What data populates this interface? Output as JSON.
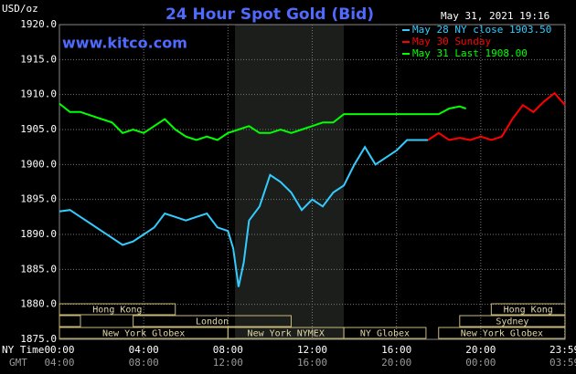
{
  "chart_data": {
    "type": "line",
    "title": "24 Hour Spot Gold (Bid)",
    "y_label": "USD/oz",
    "timestamp": "May 31, 2021 19:16",
    "source": "www.kitco.com",
    "x_label": "NY Time",
    "x2_label": "GMT",
    "xlim": [
      0,
      24
    ],
    "xticks": [
      {
        "value": 0,
        "label": "00:00"
      },
      {
        "value": 4,
        "label": "04:00"
      },
      {
        "value": 8,
        "label": "08:00"
      },
      {
        "value": 12,
        "label": "12:00"
      },
      {
        "value": 16,
        "label": "16:00"
      },
      {
        "value": 20,
        "label": "20:00"
      },
      {
        "value": 23.983,
        "label": "23:59"
      }
    ],
    "x2ticks": [
      {
        "value": 0,
        "label": "04:00"
      },
      {
        "value": 4,
        "label": "08:00"
      },
      {
        "value": 8,
        "label": "12:00"
      },
      {
        "value": 12,
        "label": "16:00"
      },
      {
        "value": 16,
        "label": "20:00"
      },
      {
        "value": 20,
        "label": "00:00"
      },
      {
        "value": 23.983,
        "label": "03:59"
      }
    ],
    "ylim": [
      1875,
      1920
    ],
    "yticks": [
      {
        "value": 1875,
        "label": "1875.0"
      },
      {
        "value": 1880,
        "label": "1880.0"
      },
      {
        "value": 1885,
        "label": "1885.0"
      },
      {
        "value": 1890,
        "label": "1890.0"
      },
      {
        "value": 1895,
        "label": "1895.0"
      },
      {
        "value": 1900,
        "label": "1900.0"
      },
      {
        "value": 1905,
        "label": "1905.0"
      },
      {
        "value": 1910,
        "label": "1910.0"
      },
      {
        "value": 1915,
        "label": "1915.0"
      },
      {
        "value": 1920,
        "label": "1920.0"
      }
    ],
    "grid": true,
    "sessions": [
      "Hong Kong",
      "London",
      "New York Globex",
      "New York NYMEX",
      "NY Globex",
      "Hong Kong",
      "Sydney",
      "New York Globex"
    ],
    "series": [
      {
        "name": "May 28 NY close 1903.50",
        "color": "#33ccff",
        "x": [
          0,
          0.5,
          1,
          1.5,
          2,
          2.5,
          3,
          3.5,
          4,
          4.5,
          5,
          5.5,
          6,
          6.5,
          7,
          7.5,
          8,
          8.25,
          8.5,
          8.75,
          9,
          9.5,
          10,
          10.5,
          11,
          11.5,
          12,
          12.5,
          13,
          13.5,
          14,
          14.5,
          15,
          15.5,
          16,
          16.5,
          17,
          17.5
        ],
        "values": [
          1893.3,
          1893.5,
          1892.5,
          1891.5,
          1890.5,
          1889.5,
          1888.5,
          1889,
          1890,
          1891,
          1893,
          1892.5,
          1892,
          1892.5,
          1893,
          1891,
          1890.5,
          1888,
          1882.5,
          1886,
          1892,
          1894,
          1898.5,
          1897.5,
          1896,
          1893.5,
          1895,
          1894,
          1896,
          1897,
          1900,
          1902.5,
          1900,
          1901,
          1902,
          1903.5,
          1903.5,
          1903.5
        ]
      },
      {
        "name": "May 30 Sunday",
        "color": "#ff0000",
        "x": [
          17.5,
          18,
          18.5,
          19,
          19.5,
          20,
          20.5,
          21,
          21.5,
          22,
          22.5,
          23,
          23.5,
          24
        ],
        "values": [
          1903.5,
          1904.5,
          1903.5,
          1903.8,
          1903.5,
          1904,
          1903.5,
          1904,
          1906.5,
          1908.5,
          1907.5,
          1909,
          1910.2,
          1908.5
        ]
      },
      {
        "name": "May 31 Last 1908.00",
        "color": "#00ff00",
        "x": [
          0,
          0.5,
          1,
          1.5,
          2,
          2.5,
          3,
          3.5,
          4,
          4.5,
          5,
          5.5,
          6,
          6.5,
          7,
          7.5,
          8,
          8.5,
          9,
          9.5,
          10,
          10.5,
          11,
          11.5,
          12,
          12.5,
          13,
          13.5,
          14,
          15,
          16,
          17,
          18,
          18.5,
          19,
          19.3
        ],
        "values": [
          1908.7,
          1907.5,
          1907.5,
          1907,
          1906.5,
          1906,
          1904.5,
          1905,
          1904.5,
          1905.5,
          1906.5,
          1905,
          1904,
          1903.5,
          1904,
          1903.5,
          1904.5,
          1905,
          1905.5,
          1904.5,
          1904.5,
          1905,
          1904.5,
          1905,
          1905.5,
          1906,
          1906,
          1907.2,
          1907.2,
          1907.2,
          1907.2,
          1907.2,
          1907.2,
          1908,
          1908.3,
          1908
        ]
      }
    ]
  }
}
